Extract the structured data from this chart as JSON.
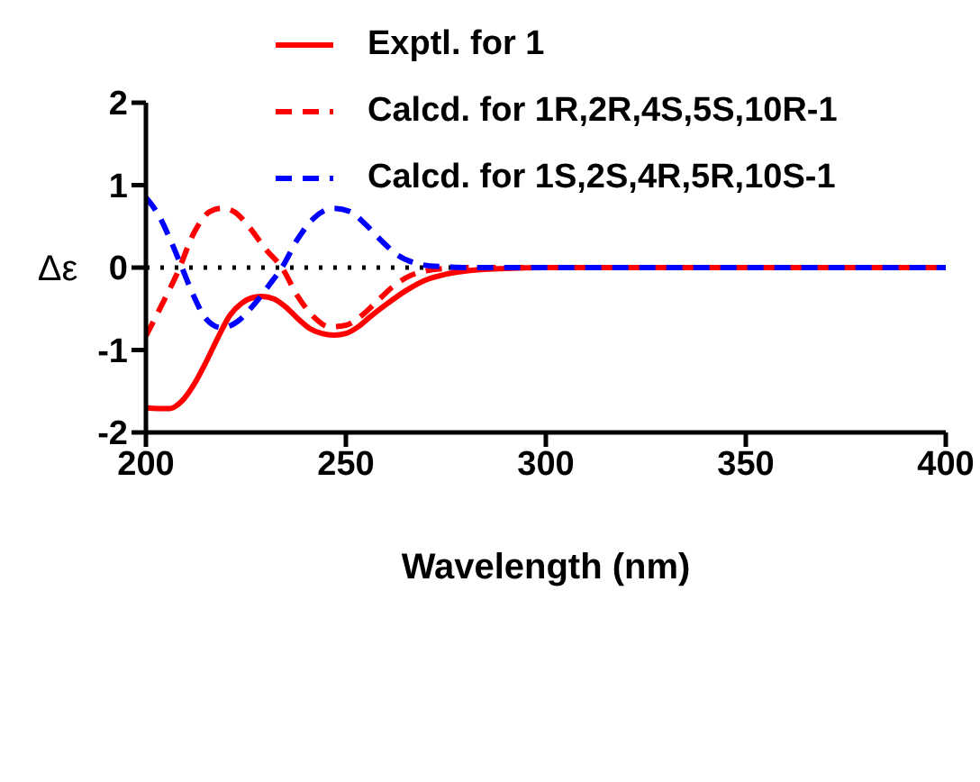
{
  "chart_data": {
    "type": "line",
    "xlabel": "Wavelength (nm)",
    "ylabel": "Δε",
    "xlim": [
      200,
      400
    ],
    "xticks": [
      200,
      250,
      300,
      350,
      400
    ],
    "ylim": [
      -2,
      2
    ],
    "yticks": [
      -2,
      -1,
      0,
      1,
      2
    ],
    "grid": false,
    "legend": "top right",
    "marker": "none",
    "ref_lines": [
      {
        "axis": "y",
        "value": 0,
        "color": "#000000",
        "line_style": "dotted"
      }
    ],
    "series": [
      {
        "name": "Exptl. for 1",
        "color": "#ff0000",
        "line_style": "solid",
        "x": [
          200,
          203,
          206,
          209,
          212,
          215,
          218,
          221,
          224,
          227,
          229,
          232,
          235,
          238,
          241,
          244,
          247,
          250,
          253,
          256,
          260,
          265,
          270,
          275,
          280,
          290,
          300,
          350,
          400
        ],
        "values": [
          -1.7,
          -1.71,
          -1.71,
          -1.62,
          -1.42,
          -1.15,
          -0.85,
          -0.58,
          -0.43,
          -0.36,
          -0.35,
          -0.38,
          -0.48,
          -0.62,
          -0.74,
          -0.8,
          -0.82,
          -0.8,
          -0.72,
          -0.6,
          -0.45,
          -0.28,
          -0.15,
          -0.08,
          -0.04,
          -0.01,
          0,
          0,
          0
        ]
      },
      {
        "name": "Calcd. for 1R,2R,4S,5S,10R-1",
        "color": "#ff0000",
        "line_style": "dashed",
        "x": [
          200,
          204,
          208,
          212,
          216,
          219,
          222,
          226,
          230,
          234,
          238,
          242,
          246,
          250,
          254,
          258,
          262,
          266,
          270,
          275,
          280,
          300,
          350,
          400
        ],
        "values": [
          -0.83,
          -0.45,
          -0.05,
          0.42,
          0.68,
          0.72,
          0.68,
          0.48,
          0.22,
          0,
          -0.35,
          -0.6,
          -0.72,
          -0.7,
          -0.58,
          -0.4,
          -0.22,
          -0.1,
          -0.04,
          -0.01,
          0,
          0,
          0,
          0
        ]
      },
      {
        "name": "Calcd. for 1S,2S,4R,5R,10S-1",
        "color": "#0000ff",
        "line_style": "dashed",
        "x": [
          200,
          203,
          206,
          209,
          212,
          215,
          219,
          223,
          227,
          231,
          234,
          238,
          242,
          247,
          251,
          255,
          259,
          263,
          267,
          271,
          275,
          280,
          300,
          400
        ],
        "values": [
          0.85,
          0.65,
          0.35,
          0.0,
          -0.35,
          -0.62,
          -0.73,
          -0.65,
          -0.45,
          -0.2,
          0,
          0.35,
          0.6,
          0.72,
          0.68,
          0.52,
          0.32,
          0.15,
          0.06,
          0.02,
          0.01,
          0,
          0,
          0
        ]
      }
    ]
  }
}
